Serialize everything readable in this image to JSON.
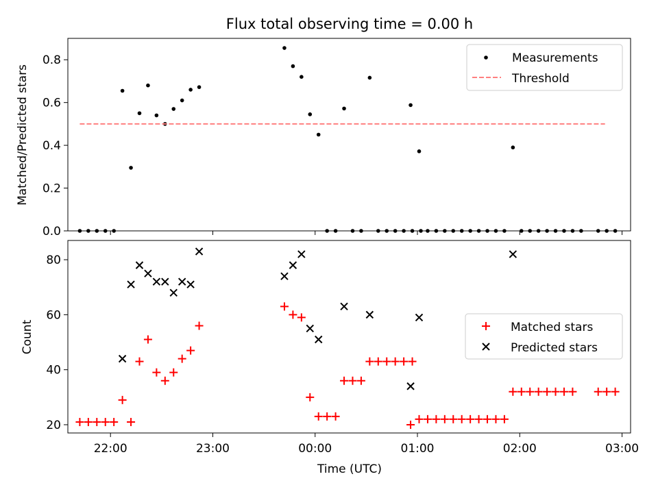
{
  "chart_data": [
    {
      "type": "scatter",
      "title": "Flux total observing time = 0.00 h",
      "ylabel": "Matched/Predicted stars",
      "xlabel": "",
      "xlim": [
        "21:35",
        "03:05"
      ],
      "ylim": [
        0,
        0.9
      ],
      "yticks": [
        "0.0",
        "0.2",
        "0.4",
        "0.6",
        "0.8"
      ],
      "xticks": [
        "22:00",
        "23:00",
        "00:00",
        "01:00",
        "02:00",
        "03:00"
      ],
      "legend_position": "top-right",
      "series": [
        {
          "name": "Measurements",
          "marker": "dot",
          "color": "#000000",
          "points": [
            [
              "21:42",
              0.0
            ],
            [
              "21:47",
              0.0
            ],
            [
              "21:52",
              0.0
            ],
            [
              "21:57",
              0.0
            ],
            [
              "22:02",
              0.0
            ],
            [
              "22:07",
              0.655
            ],
            [
              "22:12",
              0.295
            ],
            [
              "22:17",
              0.55
            ],
            [
              "22:22",
              0.68
            ],
            [
              "22:27",
              0.54
            ],
            [
              "22:32",
              0.5
            ],
            [
              "22:37",
              0.57
            ],
            [
              "22:42",
              0.61
            ],
            [
              "22:47",
              0.66
            ],
            [
              "22:52",
              0.672
            ],
            [
              "23:42",
              0.855
            ],
            [
              "23:47",
              0.77
            ],
            [
              "23:52",
              0.72
            ],
            [
              "23:57",
              0.545
            ],
            [
              "00:02",
              0.45
            ],
            [
              "00:07",
              0.0
            ],
            [
              "00:12",
              0.0
            ],
            [
              "00:17",
              0.572
            ],
            [
              "00:22",
              0.0
            ],
            [
              "00:27",
              0.0
            ],
            [
              "00:32",
              0.716
            ],
            [
              "00:37",
              0.0
            ],
            [
              "00:42",
              0.0
            ],
            [
              "00:47",
              0.0
            ],
            [
              "00:52",
              0.0
            ],
            [
              "00:57",
              0.0
            ],
            [
              "01:02",
              0.0
            ],
            [
              "00:56",
              0.588
            ],
            [
              "01:01",
              0.372
            ],
            [
              "01:06",
              0.0
            ],
            [
              "01:11",
              0.0
            ],
            [
              "01:16",
              0.0
            ],
            [
              "01:21",
              0.0
            ],
            [
              "01:26",
              0.0
            ],
            [
              "01:31",
              0.0
            ],
            [
              "01:36",
              0.0
            ],
            [
              "01:41",
              0.0
            ],
            [
              "01:46",
              0.0
            ],
            [
              "01:51",
              0.0
            ],
            [
              "01:56",
              0.39
            ],
            [
              "02:01",
              0.0
            ],
            [
              "02:06",
              0.0
            ],
            [
              "02:11",
              0.0
            ],
            [
              "02:16",
              0.0
            ],
            [
              "02:21",
              0.0
            ],
            [
              "02:26",
              0.0
            ],
            [
              "02:31",
              0.0
            ],
            [
              "02:36",
              0.0
            ],
            [
              "02:46",
              0.0
            ],
            [
              "02:51",
              0.0
            ],
            [
              "02:56",
              0.0
            ]
          ]
        },
        {
          "name": "Threshold",
          "marker": "dashed-line",
          "color": "#ff7f7f",
          "points": [
            [
              "21:42",
              0.5
            ],
            [
              "02:50",
              0.5
            ]
          ]
        }
      ]
    },
    {
      "type": "scatter",
      "title": "",
      "ylabel": "Count",
      "xlabel": "Time (UTC)",
      "xlim": [
        "21:35",
        "03:05"
      ],
      "ylim": [
        17,
        87
      ],
      "yticks": [
        "20",
        "40",
        "60",
        "80"
      ],
      "xticks": [
        "22:00",
        "23:00",
        "00:00",
        "01:00",
        "02:00",
        "03:00"
      ],
      "legend_position": "center-right",
      "series": [
        {
          "name": "Matched stars",
          "marker": "plus",
          "color": "#ff0000",
          "points": [
            [
              "21:42",
              21
            ],
            [
              "21:47",
              21
            ],
            [
              "21:52",
              21
            ],
            [
              "21:57",
              21
            ],
            [
              "22:02",
              21
            ],
            [
              "22:07",
              29
            ],
            [
              "22:12",
              21
            ],
            [
              "22:17",
              43
            ],
            [
              "22:22",
              51
            ],
            [
              "22:27",
              39
            ],
            [
              "22:32",
              36
            ],
            [
              "22:37",
              39
            ],
            [
              "22:42",
              44
            ],
            [
              "22:47",
              47
            ],
            [
              "22:52",
              56
            ],
            [
              "23:42",
              63
            ],
            [
              "23:47",
              60
            ],
            [
              "23:52",
              59
            ],
            [
              "23:57",
              30
            ],
            [
              "00:02",
              23
            ],
            [
              "00:07",
              23
            ],
            [
              "00:12",
              23
            ],
            [
              "00:17",
              36
            ],
            [
              "00:22",
              36
            ],
            [
              "00:27",
              36
            ],
            [
              "00:32",
              43
            ],
            [
              "00:37",
              43
            ],
            [
              "00:42",
              43
            ],
            [
              "00:47",
              43
            ],
            [
              "00:52",
              43
            ],
            [
              "00:57",
              43
            ],
            [
              "00:56",
              20
            ],
            [
              "01:01",
              22
            ],
            [
              "01:06",
              22
            ],
            [
              "01:11",
              22
            ],
            [
              "01:16",
              22
            ],
            [
              "01:21",
              22
            ],
            [
              "01:26",
              22
            ],
            [
              "01:31",
              22
            ],
            [
              "01:36",
              22
            ],
            [
              "01:41",
              22
            ],
            [
              "01:46",
              22
            ],
            [
              "01:51",
              22
            ],
            [
              "01:56",
              32
            ],
            [
              "02:01",
              32
            ],
            [
              "02:06",
              32
            ],
            [
              "02:11",
              32
            ],
            [
              "02:16",
              32
            ],
            [
              "02:21",
              32
            ],
            [
              "02:26",
              32
            ],
            [
              "02:31",
              32
            ],
            [
              "02:46",
              32
            ],
            [
              "02:51",
              32
            ],
            [
              "02:56",
              32
            ]
          ]
        },
        {
          "name": "Predicted stars",
          "marker": "x",
          "color": "#000000",
          "points": [
            [
              "22:07",
              44
            ],
            [
              "22:12",
              71
            ],
            [
              "22:17",
              78
            ],
            [
              "22:22",
              75
            ],
            [
              "22:27",
              72
            ],
            [
              "22:32",
              72
            ],
            [
              "22:37",
              68
            ],
            [
              "22:42",
              72
            ],
            [
              "22:47",
              71
            ],
            [
              "22:52",
              83
            ],
            [
              "23:42",
              74
            ],
            [
              "23:47",
              78
            ],
            [
              "23:52",
              82
            ],
            [
              "23:57",
              55
            ],
            [
              "00:02",
              51
            ],
            [
              "00:17",
              63
            ],
            [
              "00:32",
              60
            ],
            [
              "00:56",
              34
            ],
            [
              "01:01",
              59
            ],
            [
              "01:56",
              82
            ]
          ]
        }
      ]
    }
  ]
}
